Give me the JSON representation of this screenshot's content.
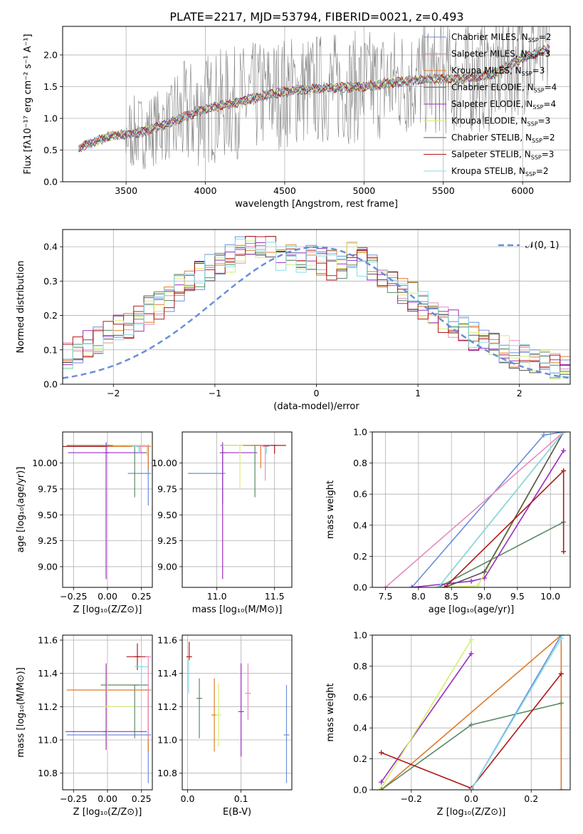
{
  "figure": {
    "title": "PLATE=2217, MJD=53794, FIBERID=0021, z=0.493"
  },
  "legend_spectrum": [
    {
      "label": "Chabrier MILES, N",
      "sub": "SSP",
      "suffix": "=2",
      "color": "#6a8fd8"
    },
    {
      "label": "Salpeter MILES, N",
      "sub": "SSP",
      "suffix": "=3",
      "color": "#e88bbf"
    },
    {
      "label": "Kroupa MILES, N",
      "sub": "SSP",
      "suffix": "=3",
      "color": "#e07b2a"
    },
    {
      "label": "Chabrier ELODIE, N",
      "sub": "SSP",
      "suffix": "=4",
      "color": "#5a8a66"
    },
    {
      "label": "Salpeter ELODIE, N",
      "sub": "SSP",
      "suffix": "=4",
      "color": "#9a2ec0"
    },
    {
      "label": "Kroupa ELODIE, N",
      "sub": "SSP",
      "suffix": "=3",
      "color": "#d4f06a"
    },
    {
      "label": "Chabrier STELIB, N",
      "sub": "SSP",
      "suffix": "=2",
      "color": "#555555"
    },
    {
      "label": "Salpeter STELIB, N",
      "sub": "SSP",
      "suffix": "=3",
      "color": "#b01a1a"
    },
    {
      "label": "Kroupa STELIB, N",
      "sub": "SSP",
      "suffix": "=2",
      "color": "#86dde6"
    }
  ],
  "chart_data": [
    {
      "id": "spectrum",
      "type": "line",
      "xlabel": "wavelength [Angstrom, rest frame]",
      "ylabel": "Flux [fλ10⁻¹⁷ erg cm⁻² s⁻¹ A⁻¹]",
      "xlim": [
        3100,
        6300
      ],
      "ylim": [
        0,
        2.45
      ],
      "xticks": [
        "3500",
        "4000",
        "4500",
        "5000",
        "5500",
        "6000"
      ],
      "yticks": [
        "0.0",
        "0.5",
        "1.0",
        "1.5",
        "2.0"
      ],
      "data_start": 3200,
      "data_end": 6170,
      "model_continuum": [
        [
          3200,
          0.53
        ],
        [
          3400,
          0.72
        ],
        [
          3600,
          0.78
        ],
        [
          3800,
          0.95
        ],
        [
          4000,
          1.15
        ],
        [
          4200,
          1.25
        ],
        [
          4400,
          1.38
        ],
        [
          4600,
          1.45
        ],
        [
          4800,
          1.48
        ],
        [
          5000,
          1.5
        ],
        [
          5200,
          1.57
        ],
        [
          5400,
          1.62
        ],
        [
          5600,
          1.62
        ],
        [
          5800,
          1.68
        ],
        [
          6000,
          1.95
        ],
        [
          6170,
          2.1
        ]
      ]
    },
    {
      "id": "residuals",
      "type": "histogram",
      "xlabel": "(data-model)/error",
      "ylabel": "Normed distribution",
      "xlim": [
        -2.5,
        2.5
      ],
      "ylim": [
        0,
        0.45
      ],
      "xticks": [
        "−2",
        "−1",
        "0",
        "1",
        "2"
      ],
      "yticks": [
        "0.0",
        "0.1",
        "0.2",
        "0.3",
        "0.4"
      ],
      "legend": "𝒩(0, 1)",
      "gaussian": {
        "mean": 0,
        "sigma": 1
      },
      "bin_width": 0.1
    },
    {
      "id": "age-vs-Z",
      "type": "errorbar",
      "xlabel": "Z [log₁₀(Z/Z⊙)]",
      "ylabel": "age  [log₁₀(age/yr)]",
      "xlim": [
        -0.33,
        0.33
      ],
      "ylim": [
        8.8,
        10.3
      ],
      "xticks": [
        "−0.25",
        "0.00",
        "0.25"
      ],
      "yticks": [
        "9.00",
        "9.25",
        "9.50",
        "9.75",
        "10.00"
      ],
      "points": [
        {
          "x": 0.12,
          "y": 10.16,
          "xerr": [
            0.45,
            0.18
          ],
          "yerr": [
            0.0,
            0.0
          ],
          "c": 7
        },
        {
          "x": 0.3,
          "y": 9.9,
          "xerr": [
            0.15,
            0.0
          ],
          "yerr": [
            0.31,
            0.28
          ],
          "c": 0
        },
        {
          "x": -0.01,
          "y": 10.1,
          "xerr": [
            0.28,
            0.3
          ],
          "yerr": [
            1.22,
            0.1
          ],
          "c": 4
        },
        {
          "x": 0.2,
          "y": 10.17,
          "xerr": [
            0.5,
            0.1
          ],
          "yerr": [
            0.5,
            0.0
          ],
          "c": 3
        },
        {
          "x": 0.3,
          "y": 10.16,
          "xerr": [
            0.3,
            0.0
          ],
          "yerr": [
            0.22,
            0.0
          ],
          "c": 2
        },
        {
          "x": 0.29,
          "y": 10.17,
          "xerr": [
            0.25,
            0.01
          ],
          "yerr": [
            0.1,
            0.0
          ],
          "c": 5
        },
        {
          "x": 0.23,
          "y": 10.16,
          "xerr": [
            0.05,
            0.06
          ],
          "yerr": [
            0.07,
            0.0
          ],
          "c": 8
        },
        {
          "x": 0.24,
          "y": 10.16,
          "xerr": [
            0.01,
            0.06
          ],
          "yerr": [
            0.06,
            0.0
          ],
          "c": 1
        }
      ]
    },
    {
      "id": "age-vs-mass",
      "type": "errorbar",
      "xlabel": "mass [log₁₀(M/M⊙)]",
      "ylabel": "",
      "xlim": [
        10.7,
        11.65
      ],
      "ylim": [
        8.8,
        10.3
      ],
      "xticks": [
        "11.0",
        "11.5"
      ],
      "yticks": [
        "9.00",
        "9.25",
        "9.50",
        "9.75",
        "10.00"
      ],
      "points": [
        {
          "x": 11.5,
          "y": 10.17,
          "xerr": [
            0.2,
            0.1
          ],
          "yerr": [
            0.08,
            0.0
          ],
          "c": 7
        },
        {
          "x": 11.05,
          "y": 9.9,
          "xerr": [
            0.3,
            0.0
          ],
          "yerr": [
            0.3,
            0.28
          ],
          "c": 0
        },
        {
          "x": 11.05,
          "y": 10.1,
          "xerr": [
            0.0,
            0.3
          ],
          "yerr": [
            1.22,
            0.1
          ],
          "c": 4
        },
        {
          "x": 11.33,
          "y": 10.17,
          "xerr": [
            0.3,
            0.0
          ],
          "yerr": [
            0.5,
            0.0
          ],
          "c": 3
        },
        {
          "x": 11.38,
          "y": 10.17,
          "xerr": [
            0.3,
            0.0
          ],
          "yerr": [
            0.22,
            0.0
          ],
          "c": 2
        },
        {
          "x": 11.2,
          "y": 10.17,
          "xerr": [
            0.15,
            0.0
          ],
          "yerr": [
            0.41,
            0.0
          ],
          "c": 5
        },
        {
          "x": 11.43,
          "y": 10.16,
          "xerr": [
            0.0,
            0.0
          ],
          "yerr": [
            0.07,
            0.0
          ],
          "c": 8
        },
        {
          "x": 11.42,
          "y": 10.16,
          "xerr": [
            0.0,
            0.0
          ],
          "yerr": [
            0.33,
            0.0
          ],
          "c": 1
        }
      ]
    },
    {
      "id": "massweight-vs-age",
      "type": "line",
      "xlabel": "age  [log₁₀(age/yr)]",
      "ylabel": "mass weight",
      "xlim": [
        7.3,
        10.3
      ],
      "ylim": [
        0,
        1
      ],
      "xticks": [
        "7.5",
        "8.0",
        "8.5",
        "9.0",
        "9.5",
        "10.0"
      ],
      "yticks": [
        "0.0",
        "0.2",
        "0.4",
        "0.6",
        "0.8",
        "1.0"
      ],
      "series": [
        {
          "points": [
            [
              7.9,
              0.0
            ],
            [
              9.9,
              0.98
            ],
            [
              10.2,
              1.0
            ]
          ],
          "c": 0
        },
        {
          "points": [
            [
              7.5,
              0.0
            ],
            [
              10.2,
              1.0
            ]
          ],
          "c": 1
        },
        {
          "points": [
            [
              8.3,
              0.0
            ],
            [
              10.2,
              1.0
            ]
          ],
          "c": 2
        },
        {
          "points": [
            [
              8.3,
              0.0
            ],
            [
              10.2,
              0.42
            ]
          ],
          "c": 3
        },
        {
          "points": [
            [
              7.9,
              0.0
            ],
            [
              8.8,
              0.04
            ],
            [
              9.0,
              0.06
            ],
            [
              10.2,
              0.88
            ]
          ],
          "c": 4
        },
        {
          "points": [
            [
              8.4,
              0.0
            ],
            [
              8.9,
              0.01
            ],
            [
              9.05,
              0.13
            ],
            [
              10.2,
              1.0
            ]
          ],
          "c": 5
        },
        {
          "points": [
            [
              8.4,
              0.0
            ],
            [
              9.0,
              0.1
            ],
            [
              10.2,
              1.0
            ]
          ],
          "c": 6
        },
        {
          "points": [
            [
              8.4,
              0.0
            ],
            [
              10.2,
              0.75
            ],
            [
              10.2,
              0.23
            ]
          ],
          "c": 7
        },
        {
          "points": [
            [
              8.3,
              0.0
            ],
            [
              10.2,
              1.0
            ]
          ],
          "c": 8
        }
      ]
    },
    {
      "id": "mass-vs-Z",
      "type": "errorbar",
      "xlabel": "Z [log₁₀(Z/Z⊙)]",
      "ylabel": "mass [log₁₀(M/M⊙)]",
      "xlim": [
        -0.33,
        0.33
      ],
      "ylim": [
        10.7,
        11.63
      ],
      "xticks": [
        "−0.25",
        "0.00",
        "0.25"
      ],
      "yticks": [
        "10.8",
        "11.0",
        "11.2",
        "11.4",
        "11.6"
      ],
      "points": [
        {
          "x": 0.22,
          "y": 11.5,
          "xerr": [
            0.08,
            0.08
          ],
          "yerr": [
            0.08,
            0.08
          ],
          "c": 7
        },
        {
          "x": 0.3,
          "y": 11.03,
          "xerr": [
            0.6,
            0.0
          ],
          "yerr": [
            0.29,
            0.24
          ],
          "c": 0
        },
        {
          "x": -0.01,
          "y": 11.05,
          "xerr": [
            0.3,
            0.3
          ],
          "yerr": [
            0.11,
            0.41
          ],
          "c": 4
        },
        {
          "x": 0.2,
          "y": 11.33,
          "xerr": [
            0.25,
            0.1
          ],
          "yerr": [
            0.32,
            0.0
          ],
          "c": 3
        },
        {
          "x": 0.3,
          "y": 11.3,
          "xerr": [
            0.6,
            0.0
          ],
          "yerr": [
            0.37,
            0.0
          ],
          "c": 2
        },
        {
          "x": 0.0,
          "y": 11.2,
          "xerr": [
            0.0,
            0.2
          ],
          "yerr": [
            0.27,
            0.26
          ],
          "c": 5
        },
        {
          "x": 0.25,
          "y": 11.44,
          "xerr": [
            0.05,
            0.05
          ],
          "yerr": [
            0.11,
            0.0
          ],
          "c": 8
        },
        {
          "x": 0.3,
          "y": 11.5,
          "xerr": [
            0.0,
            0.0
          ],
          "yerr": [
            0.5,
            0.0
          ],
          "c": 1
        }
      ]
    },
    {
      "id": "mass-vs-EBV",
      "type": "errorbar",
      "xlabel": "E(B-V)",
      "ylabel": "",
      "xlim": [
        -0.01,
        0.195
      ],
      "ylim": [
        10.7,
        11.63
      ],
      "xticks": [
        "0.0",
        "0.1"
      ],
      "yticks": [
        "10.8",
        "11.0",
        "11.2",
        "11.4",
        "11.6"
      ],
      "points": [
        {
          "x": 0.003,
          "y": 11.5,
          "xerr": [
            0,
            0
          ],
          "yerr": [
            0.02,
            0.09
          ],
          "c": 7
        },
        {
          "x": 0.002,
          "y": 11.4,
          "xerr": [
            0,
            0
          ],
          "yerr": [
            0.12,
            0.08
          ],
          "c": 8
        },
        {
          "x": 0.022,
          "y": 11.25,
          "xerr": [
            0,
            0
          ],
          "yerr": [
            0.24,
            0.12
          ],
          "c": 3
        },
        {
          "x": 0.05,
          "y": 11.15,
          "xerr": [
            0,
            0
          ],
          "yerr": [
            0.22,
            0.22
          ],
          "c": 2
        },
        {
          "x": 0.058,
          "y": 11.15,
          "xerr": [
            0,
            0
          ],
          "yerr": [
            0.19,
            0.19
          ],
          "c": 5
        },
        {
          "x": 0.1,
          "y": 11.17,
          "xerr": [
            0,
            0
          ],
          "yerr": [
            0.27,
            0.29
          ],
          "c": 4
        },
        {
          "x": 0.113,
          "y": 11.28,
          "xerr": [
            0,
            0
          ],
          "yerr": [
            0.16,
            0.18
          ],
          "c": 1
        },
        {
          "x": 0.185,
          "y": 11.03,
          "xerr": [
            0,
            0
          ],
          "yerr": [
            0.29,
            0.3
          ],
          "c": 0
        }
      ]
    },
    {
      "id": "massweight-vs-Z",
      "type": "line",
      "xlabel": "Z [log₁₀(Z/Z⊙)]",
      "ylabel": "mass weight",
      "xlim": [
        -0.33,
        0.33
      ],
      "ylim": [
        0,
        1
      ],
      "xticks": [
        "−0.2",
        "0.0",
        "0.2"
      ],
      "yticks": [
        "0.0",
        "0.2",
        "0.4",
        "0.6",
        "0.8",
        "1.0"
      ],
      "series": [
        {
          "points": [
            [
              -0.3,
              0.05
            ],
            [
              0.0,
              0.88
            ]
          ],
          "c": 4
        },
        {
          "points": [
            [
              -0.3,
              0.01
            ],
            [
              0.0,
              0.97
            ]
          ],
          "c": 5
        },
        {
          "points": [
            [
              -0.3,
              0.0
            ],
            [
              0.3,
              1.0
            ],
            [
              0.3,
              0.0
            ]
          ],
          "c": 2
        },
        {
          "points": [
            [
              -0.3,
              0.0
            ],
            [
              0.0,
              0.42
            ],
            [
              0.3,
              0.56
            ]
          ],
          "c": 3
        },
        {
          "points": [
            [
              -0.3,
              0.24
            ],
            [
              0.0,
              0.01
            ],
            [
              0.3,
              0.75
            ]
          ],
          "c": 7
        },
        {
          "points": [
            [
              0.0,
              0.0
            ],
            [
              0.3,
              1.0
            ]
          ],
          "c": 0
        },
        {
          "points": [
            [
              0.0,
              0.0
            ],
            [
              0.3,
              0.98
            ]
          ],
          "c": 8
        }
      ]
    }
  ]
}
